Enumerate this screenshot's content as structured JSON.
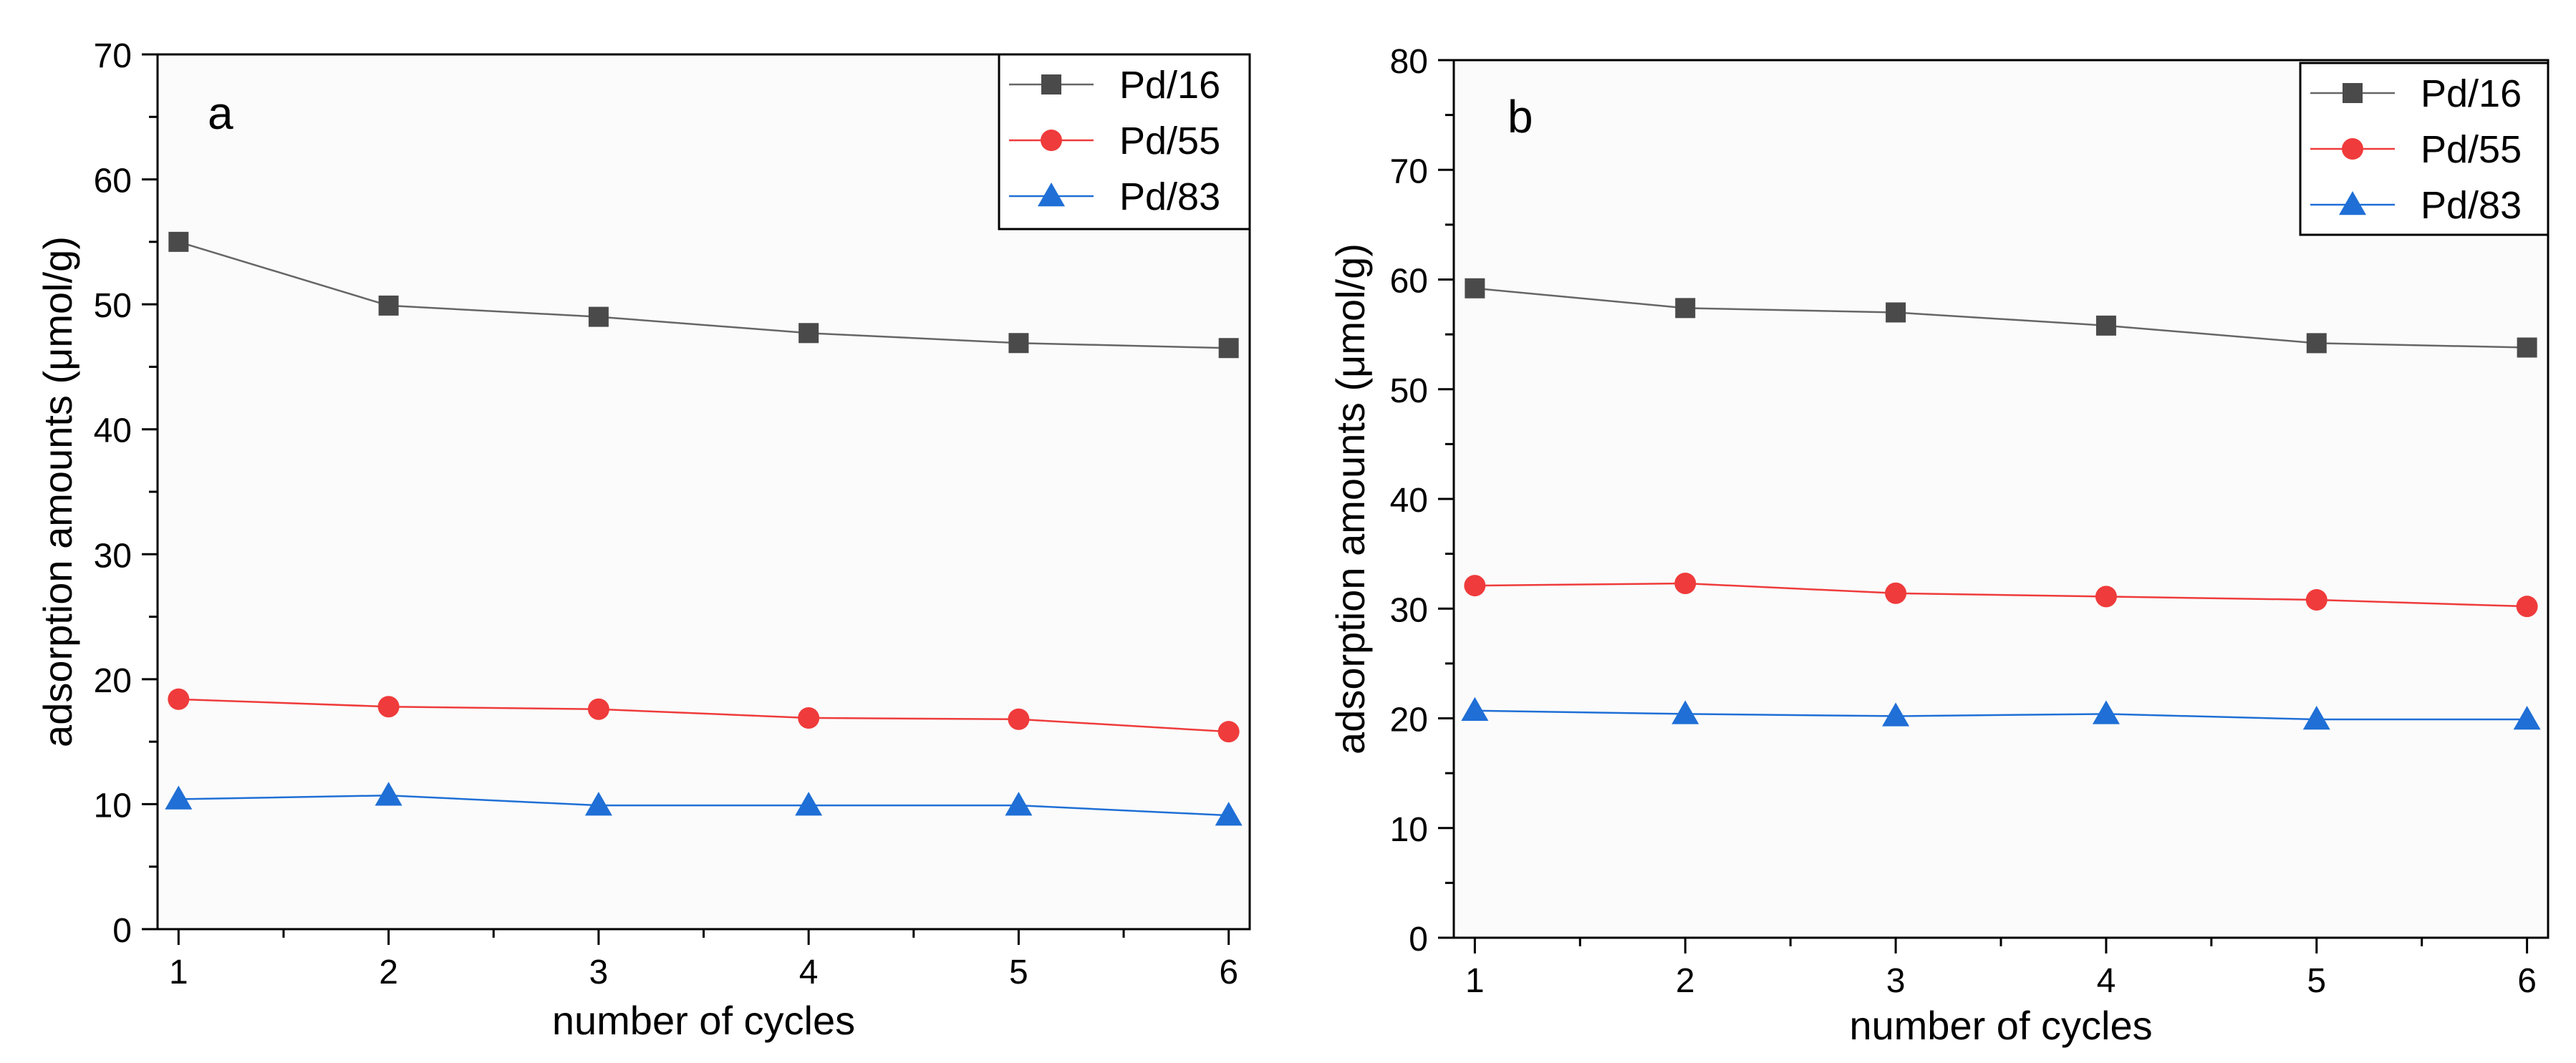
{
  "chart_data": [
    {
      "type": "line",
      "panel_label": "a",
      "xlabel": "number of cycles",
      "ylabel": "adsorption amounts (μmol/g)",
      "x": [
        1,
        2,
        3,
        4,
        5,
        6
      ],
      "xlim": [
        0.9,
        6.1
      ],
      "ylim": [
        0,
        70
      ],
      "y_ticks": [
        0,
        10,
        20,
        30,
        40,
        50,
        60,
        70
      ],
      "legend_position": "top-right",
      "grid": false,
      "series": [
        {
          "name": "Pd/16",
          "marker": "square",
          "color": "#4a4a4a",
          "line_color": "#666666",
          "values": [
            55.0,
            49.9,
            49.0,
            47.7,
            46.9,
            46.5
          ]
        },
        {
          "name": "Pd/55",
          "marker": "circle",
          "color": "#ef3b3b",
          "line_color": "#ef3b3b",
          "values": [
            18.4,
            17.8,
            17.6,
            16.9,
            16.8,
            15.8
          ]
        },
        {
          "name": "Pd/83",
          "marker": "triangle",
          "color": "#1f6fd6",
          "line_color": "#1f6fd6",
          "values": [
            10.4,
            10.7,
            9.9,
            9.9,
            9.9,
            9.1
          ]
        }
      ]
    },
    {
      "type": "line",
      "panel_label": "b",
      "xlabel": "number of cycles",
      "ylabel": "adsorption amounts (μmol/g)",
      "x": [
        1,
        2,
        3,
        4,
        5,
        6
      ],
      "xlim": [
        0.9,
        6.1
      ],
      "ylim": [
        0,
        80
      ],
      "y_ticks": [
        0,
        10,
        20,
        30,
        40,
        50,
        60,
        70,
        80
      ],
      "legend_position": "top-right",
      "grid": false,
      "series": [
        {
          "name": "Pd/16",
          "marker": "square",
          "color": "#4a4a4a",
          "line_color": "#666666",
          "values": [
            59.2,
            57.4,
            57.0,
            55.8,
            54.2,
            53.8
          ]
        },
        {
          "name": "Pd/55",
          "marker": "circle",
          "color": "#ef3b3b",
          "line_color": "#ef3b3b",
          "values": [
            32.1,
            32.3,
            31.4,
            31.1,
            30.8,
            30.2
          ]
        },
        {
          "name": "Pd/83",
          "marker": "triangle",
          "color": "#1f6fd6",
          "line_color": "#1f6fd6",
          "values": [
            20.7,
            20.4,
            20.2,
            20.4,
            19.9,
            19.9
          ]
        }
      ]
    }
  ]
}
